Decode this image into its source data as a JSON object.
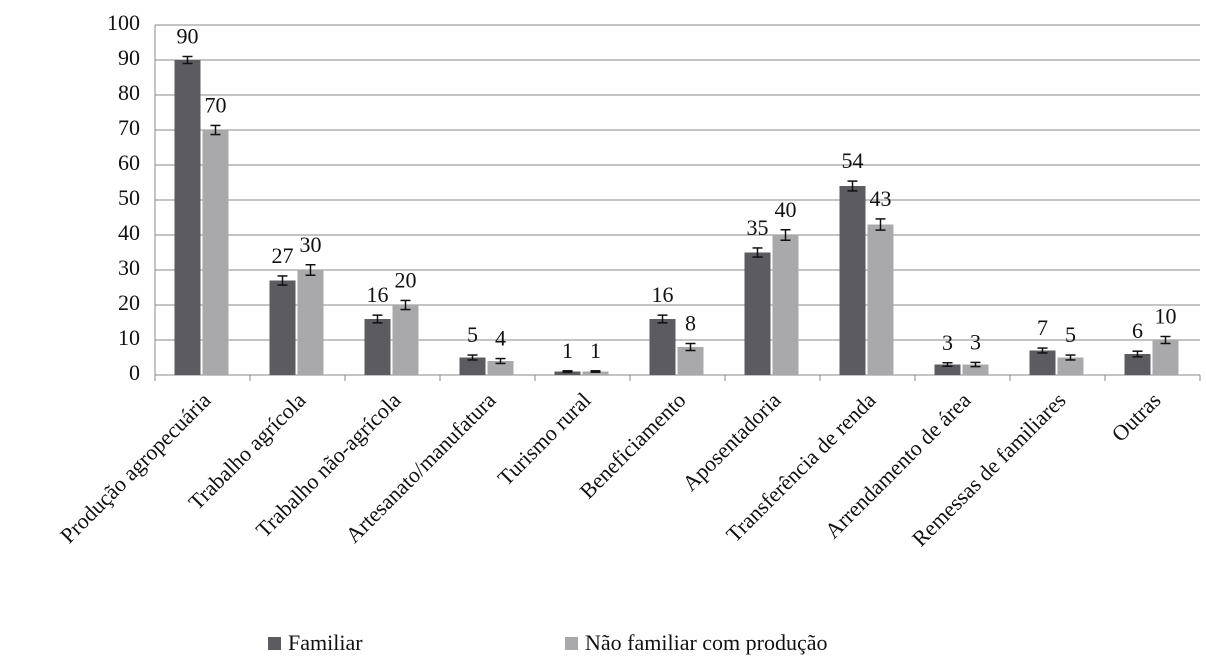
{
  "chart_data": {
    "type": "bar",
    "categories": [
      "Produção agropecuária",
      "Trabalho agrícola",
      "Trabalho não-agrícola",
      "Artesanato/manufatura",
      "Turismo rural",
      "Beneficiamento",
      "Aposentadoria",
      "Transferência de renda",
      "Arrendamento de área",
      "Remessas de familiares",
      "Outras"
    ],
    "series": [
      {
        "name": "Familiar",
        "color": "#5b5b60",
        "values": [
          90,
          27,
          16,
          5,
          1,
          16,
          35,
          54,
          3,
          7,
          6
        ],
        "errors": [
          1,
          1.3,
          1.1,
          0.7,
          0.2,
          1.1,
          1.3,
          1.4,
          0.5,
          0.7,
          0.8
        ]
      },
      {
        "name": "Não familiar com produção",
        "color": "#a9a9ab",
        "values": [
          70,
          30,
          20,
          4,
          1,
          8,
          40,
          43,
          3,
          5,
          10
        ],
        "errors": [
          1.3,
          1.5,
          1.3,
          0.7,
          0.2,
          1,
          1.5,
          1.6,
          0.6,
          0.7,
          1
        ]
      }
    ],
    "ylim": [
      0,
      100
    ],
    "yticks": [
      0,
      10,
      20,
      30,
      40,
      50,
      60,
      70,
      80,
      90,
      100
    ],
    "grid": true,
    "legend": "bottom"
  }
}
